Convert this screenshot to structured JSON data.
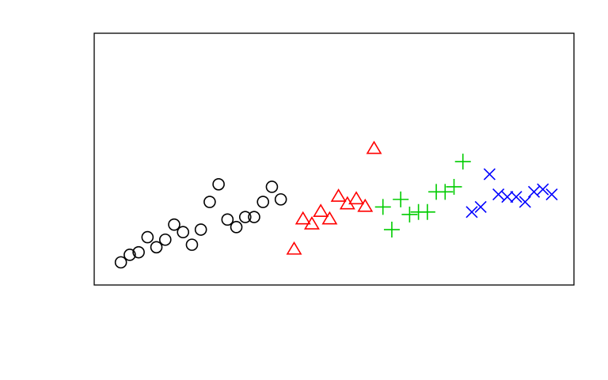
{
  "chart_data": {
    "type": "scatter",
    "title": "",
    "xlabel": "",
    "ylabel": "",
    "grid": false,
    "axes_visible": false,
    "xlim": [
      0,
      54
    ],
    "ylim": [
      0,
      100
    ],
    "series": [
      {
        "marker": "circle",
        "color": "#000000",
        "points": [
          [
            3.0,
            9
          ],
          [
            4.0,
            12
          ],
          [
            5.0,
            13
          ],
          [
            6.0,
            19
          ],
          [
            7.0,
            15
          ],
          [
            8.0,
            18
          ],
          [
            9.0,
            24
          ],
          [
            10.0,
            21
          ],
          [
            11.0,
            16
          ],
          [
            12.0,
            22
          ],
          [
            13.0,
            33
          ],
          [
            14.0,
            40
          ],
          [
            15.0,
            26
          ],
          [
            16.0,
            23
          ],
          [
            17.0,
            27
          ],
          [
            18.0,
            27
          ],
          [
            19.0,
            33
          ],
          [
            20.0,
            39
          ],
          [
            21.0,
            34
          ]
        ]
      },
      {
        "marker": "triangle",
        "color": "#ff0000",
        "points": [
          [
            22.5,
            14
          ],
          [
            23.5,
            26
          ],
          [
            24.5,
            24
          ],
          [
            25.5,
            29
          ],
          [
            26.5,
            26
          ],
          [
            27.5,
            35
          ],
          [
            28.5,
            32
          ],
          [
            29.5,
            34
          ],
          [
            30.5,
            31
          ],
          [
            31.5,
            54
          ]
        ]
      },
      {
        "marker": "plus",
        "color": "#00cc00",
        "points": [
          [
            32.5,
            31
          ],
          [
            33.5,
            22
          ],
          [
            34.5,
            34
          ],
          [
            35.5,
            28
          ],
          [
            36.5,
            29
          ],
          [
            37.5,
            29
          ],
          [
            38.5,
            37
          ],
          [
            39.5,
            37
          ],
          [
            40.5,
            39
          ],
          [
            41.5,
            49
          ]
        ]
      },
      {
        "marker": "x",
        "color": "#0000ff",
        "points": [
          [
            42.5,
            29
          ],
          [
            43.5,
            31
          ],
          [
            44.5,
            44
          ],
          [
            45.5,
            36
          ],
          [
            46.5,
            35
          ],
          [
            47.5,
            35
          ],
          [
            48.5,
            33
          ],
          [
            49.5,
            37
          ],
          [
            50.5,
            38
          ],
          [
            51.5,
            36
          ]
        ]
      }
    ]
  }
}
